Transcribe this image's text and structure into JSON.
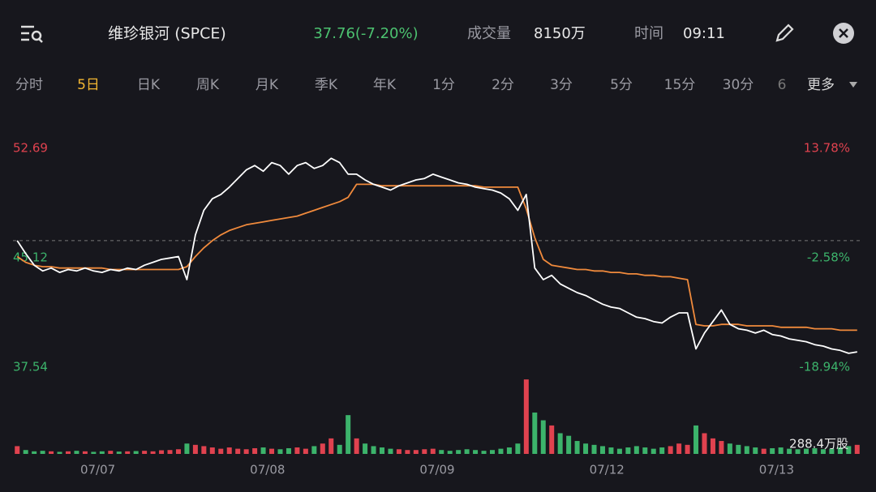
{
  "header": {
    "title": "维珍银河 (SPCE)",
    "price": "37.76(-7.20%)",
    "volume_label": "成交量",
    "volume": "8150万",
    "time_label": "时间",
    "time": "09:11"
  },
  "tabs": [
    "分时",
    "5日",
    "日K",
    "周K",
    "月K",
    "季K",
    "年K",
    "1分",
    "2分",
    "3分",
    "5分",
    "15分",
    "30分",
    "6"
  ],
  "more": "更多",
  "chart_data": {
    "type": "line",
    "series": [
      {
        "name": "price",
        "color": "#ffffff",
        "values": [
          46.3,
          45.4,
          44.6,
          44.2,
          44.4,
          44.1,
          44.3,
          44.2,
          44.4,
          44.2,
          44.1,
          44.3,
          44.2,
          44.4,
          44.3,
          44.6,
          44.8,
          45.0,
          45.1,
          45.2,
          43.6,
          46.7,
          48.4,
          49.2,
          49.5,
          50.0,
          50.6,
          51.2,
          51.5,
          51.1,
          51.7,
          51.5,
          50.9,
          51.5,
          51.7,
          51.3,
          51.5,
          52.0,
          51.7,
          50.9,
          50.9,
          50.5,
          50.2,
          50.0,
          49.8,
          50.1,
          50.3,
          50.5,
          50.6,
          50.9,
          50.7,
          50.5,
          50.3,
          50.2,
          50.0,
          49.9,
          49.8,
          49.6,
          49.2,
          48.4,
          49.5,
          44.4,
          43.6,
          43.9,
          43.3,
          43.0,
          42.7,
          42.5,
          42.2,
          41.9,
          41.7,
          41.6,
          41.3,
          41.0,
          40.9,
          40.7,
          40.6,
          41.0,
          41.3,
          41.3,
          38.8,
          39.9,
          40.7,
          41.5,
          40.5,
          40.2,
          40.1,
          39.9,
          40.1,
          39.8,
          39.7,
          39.5,
          39.4,
          39.3,
          39.1,
          39.0,
          38.8,
          38.7,
          38.5,
          38.6
        ]
      },
      {
        "name": "average",
        "color": "#f08a3c",
        "values": [
          45.2,
          44.8,
          44.6,
          44.5,
          44.5,
          44.4,
          44.4,
          44.4,
          44.4,
          44.4,
          44.4,
          44.3,
          44.3,
          44.3,
          44.3,
          44.3,
          44.3,
          44.3,
          44.3,
          44.3,
          44.5,
          45.2,
          45.8,
          46.3,
          46.7,
          47.0,
          47.2,
          47.4,
          47.5,
          47.6,
          47.7,
          47.8,
          47.9,
          48.0,
          48.2,
          48.4,
          48.6,
          48.8,
          49.0,
          49.3,
          50.2,
          50.2,
          50.2,
          50.1,
          50.1,
          50.1,
          50.1,
          50.1,
          50.1,
          50.1,
          50.1,
          50.1,
          50.1,
          50.1,
          50.1,
          50.0,
          50.0,
          50.0,
          50.0,
          50.0,
          48.5,
          46.5,
          45.0,
          44.6,
          44.5,
          44.4,
          44.3,
          44.3,
          44.2,
          44.2,
          44.1,
          44.1,
          44.0,
          44.0,
          43.9,
          43.9,
          43.8,
          43.8,
          43.7,
          43.6,
          40.5,
          40.4,
          40.4,
          40.5,
          40.5,
          40.5,
          40.4,
          40.4,
          40.4,
          40.4,
          40.3,
          40.3,
          40.3,
          40.3,
          40.2,
          40.2,
          40.2,
          40.1,
          40.1,
          40.1
        ]
      }
    ],
    "volume": [
      30,
      15,
      10,
      12,
      10,
      8,
      10,
      12,
      10,
      8,
      10,
      12,
      9,
      10,
      11,
      12,
      10,
      14,
      15,
      18,
      40,
      35,
      30,
      25,
      20,
      25,
      20,
      18,
      22,
      25,
      20,
      18,
      22,
      25,
      20,
      30,
      40,
      60,
      35,
      150,
      60,
      40,
      30,
      25,
      20,
      18,
      15,
      15,
      18,
      20,
      15,
      12,
      15,
      18,
      15,
      12,
      15,
      20,
      25,
      40,
      288,
      160,
      130,
      110,
      80,
      70,
      50,
      40,
      35,
      30,
      25,
      20,
      25,
      30,
      25,
      20,
      25,
      30,
      40,
      35,
      110,
      80,
      60,
      50,
      40,
      35,
      30,
      25,
      20,
      22,
      25,
      20,
      18,
      20,
      22,
      18,
      20,
      25,
      30,
      35
    ],
    "volume_max": {
      "value": 288.4,
      "label": "288.4万股"
    },
    "up_color": "#e0424f",
    "down_color": "#3cb36b",
    "baseline": 46.3,
    "xlim": [
      0,
      100
    ],
    "xticks": [
      {
        "value": 10,
        "label": "07/07"
      },
      {
        "value": 30,
        "label": "07/08"
      },
      {
        "value": 50,
        "label": "07/09"
      },
      {
        "value": 70,
        "label": "07/12"
      },
      {
        "value": 90,
        "label": "07/13"
      }
    ],
    "ylim": [
      37.54,
      52.69
    ],
    "yticks": [
      37.54,
      45.12,
      52.69
    ],
    "y2lim": [
      -18.94,
      13.78
    ],
    "y2ticks": [
      {
        "value": -18.94,
        "label": "-18.94%"
      },
      {
        "value": -2.58,
        "label": "-2.58%"
      },
      {
        "value": 13.78,
        "label": "13.78%"
      }
    ]
  }
}
